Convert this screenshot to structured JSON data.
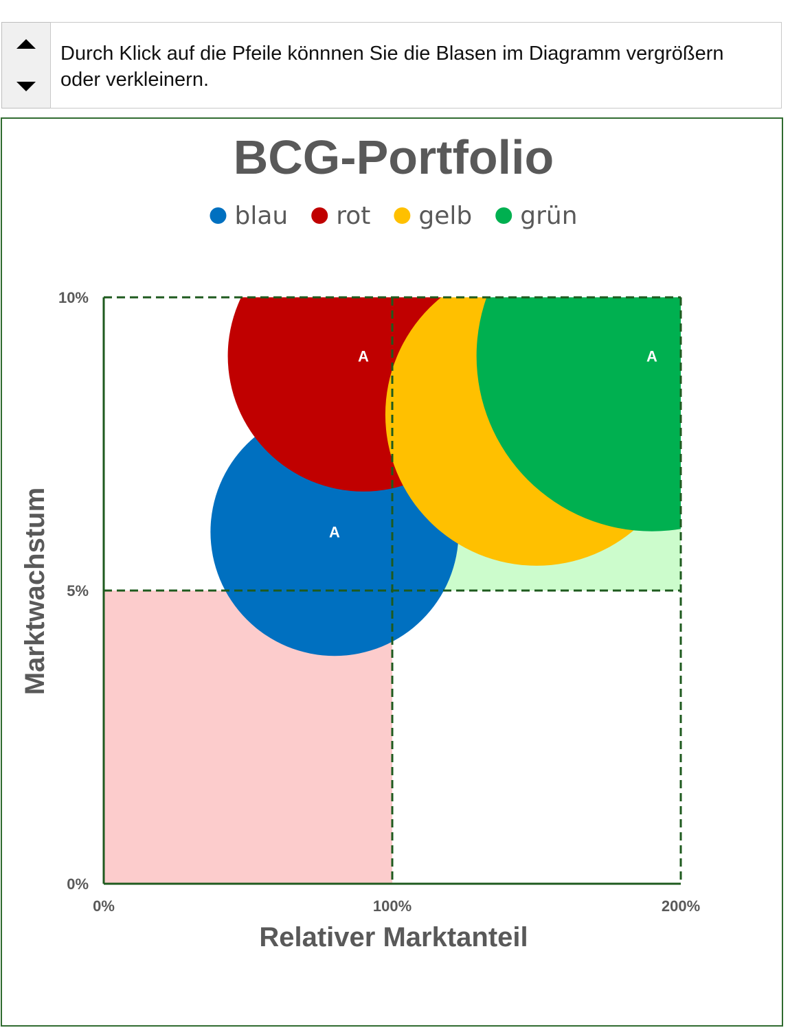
{
  "instruction": {
    "text": "Durch Klick auf die Pfeile könnnen Sie die Blasen im Diagramm vergrößern oder verkleinern."
  },
  "spinner": {
    "up_icon": "triangle-up-icon",
    "down_icon": "triangle-down-icon"
  },
  "chart_data": {
    "type": "bubble",
    "title": "BCG-Portfolio",
    "xlabel": "Relativer Marktanteil",
    "ylabel": "Marktwachstum",
    "xlim": [
      0,
      200
    ],
    "ylim": [
      0,
      10
    ],
    "x_ticks": [
      {
        "value": 0,
        "label": "0%"
      },
      {
        "value": 100,
        "label": "100%"
      },
      {
        "value": 200,
        "label": "200%"
      }
    ],
    "y_ticks": [
      {
        "value": 0,
        "label": "0%"
      },
      {
        "value": 5,
        "label": "5%"
      },
      {
        "value": 10,
        "label": "10%"
      }
    ],
    "legend_position": "top",
    "quadrant_dividers": {
      "x": 100,
      "y": 5
    },
    "quadrant_shading": [
      {
        "x_range": [
          100,
          200
        ],
        "y_range": [
          5,
          10
        ],
        "color": "#ccfccc"
      },
      {
        "x_range": [
          0,
          100
        ],
        "y_range": [
          0,
          5
        ],
        "color": "#fccccc"
      }
    ],
    "series": [
      {
        "name": "blau",
        "color": "#0070c0",
        "x": 80,
        "y": 6,
        "size": 21.5,
        "label": "A"
      },
      {
        "name": "rot",
        "color": "#c00000",
        "x": 90,
        "y": 9,
        "size": 23.5,
        "label": "A"
      },
      {
        "name": "gelb",
        "color": "#ffc000",
        "x": 150,
        "y": 8,
        "size": 26.2,
        "label": "A"
      },
      {
        "name": "grün",
        "color": "#00b050",
        "x": 190,
        "y": 9,
        "size": 30.4,
        "label": "A"
      }
    ]
  }
}
